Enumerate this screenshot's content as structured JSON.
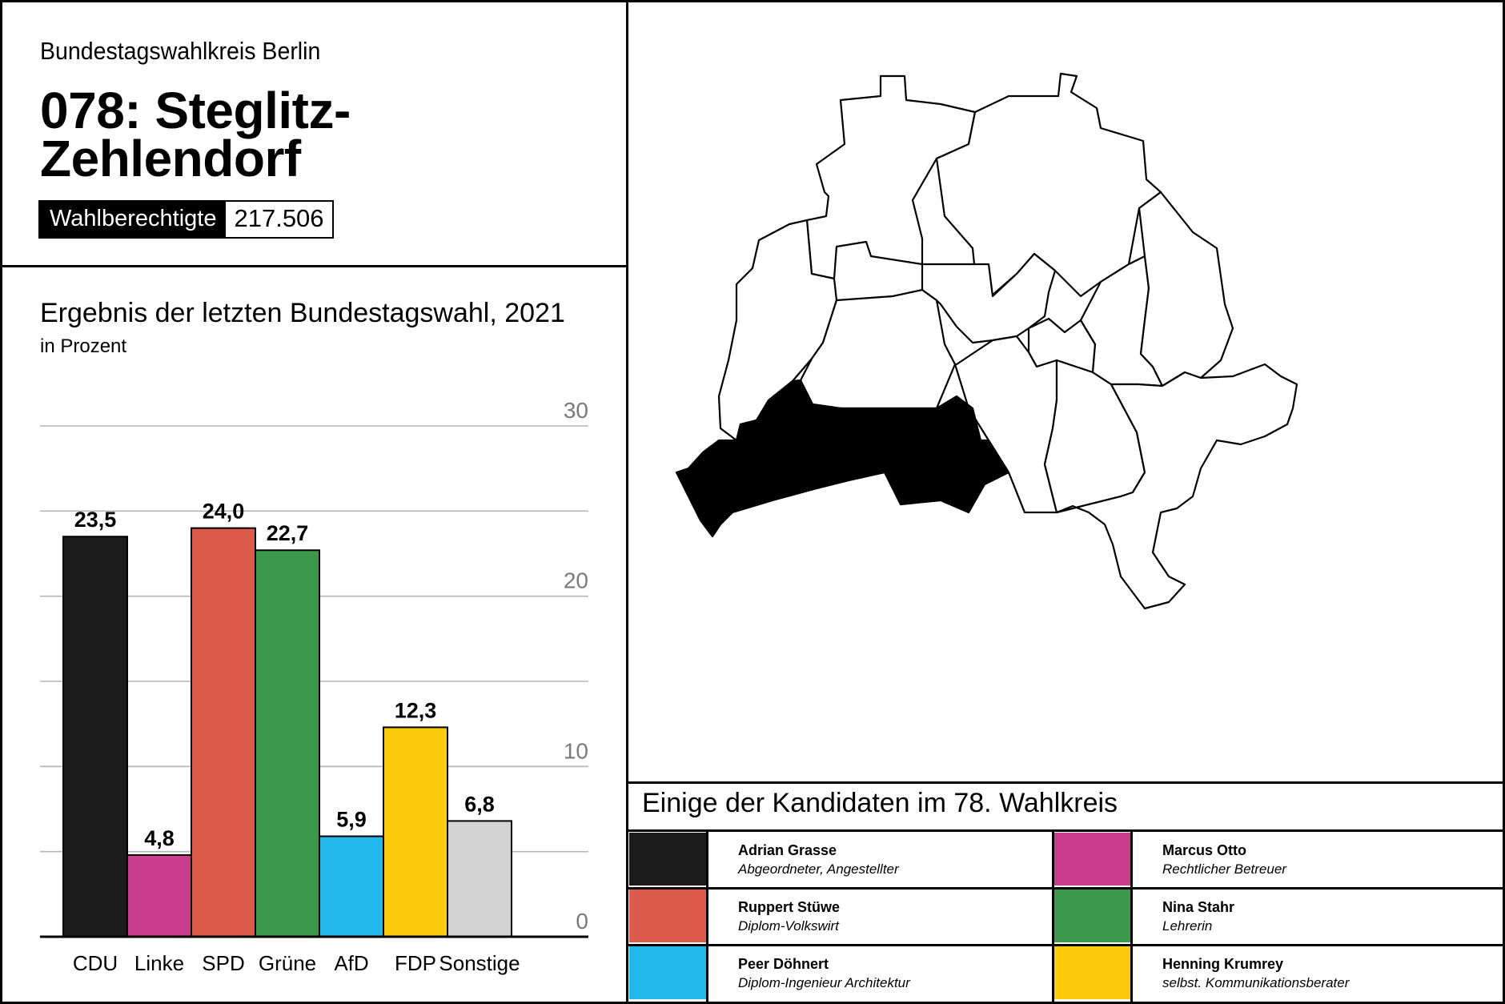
{
  "header": {
    "kicker": "Bundestagswahlkreis Berlin",
    "title_line1": "078: Steglitz-",
    "title_line2": "Zehlendorf",
    "eligible_label": "Wahlberechtigte",
    "eligible_value": "217.506"
  },
  "chart_data": {
    "type": "bar",
    "title": "Ergebnis der letzten Bundestagswahl, 2021",
    "subtitle": "in Prozent",
    "categories": [
      "CDU",
      "Linke",
      "SPD",
      "Grüne",
      "AfD",
      "FDP",
      "Sonstige"
    ],
    "values": [
      23.5,
      4.8,
      24.0,
      22.7,
      5.9,
      12.3,
      6.8
    ],
    "value_labels": [
      "23,5",
      "4,8",
      "24,0",
      "22,7",
      "5,9",
      "12,3",
      "6,8"
    ],
    "colors": [
      "#1c1c1c",
      "#cb3d8e",
      "#dc5a4a",
      "#3a9a4a",
      "#22b8ea",
      "#fdcb0a",
      "#d2d2d2"
    ],
    "ylim": [
      0,
      30
    ],
    "yticks": [
      0,
      10,
      20,
      30
    ],
    "ytick_labels": [
      "0",
      "10",
      "20",
      "30"
    ],
    "grid": true
  },
  "map": {
    "highlight_color": "#000000"
  },
  "candidates": {
    "title": "Einige der Kandidaten im 78. Wahlkreis",
    "items": [
      {
        "name": "Adrian Grasse",
        "role": "Abgeordneter, Angestellter",
        "color": "#1c1c1c"
      },
      {
        "name": "Marcus Otto",
        "role": "Rechtlicher Betreuer",
        "color": "#cb3d8e"
      },
      {
        "name": "Ruppert Stüwe",
        "role": "Diplom-Volkswirt",
        "color": "#dc5a4a"
      },
      {
        "name": "Nina Stahr",
        "role": "Lehrerin",
        "color": "#3a9a4a"
      },
      {
        "name": "Peer Döhnert",
        "role": "Diplom-Ingenieur Architektur",
        "color": "#22b8ea"
      },
      {
        "name": "Henning Krumrey",
        "role": "selbst. Kommunikationsberater",
        "color": "#fdcb0a"
      }
    ]
  }
}
